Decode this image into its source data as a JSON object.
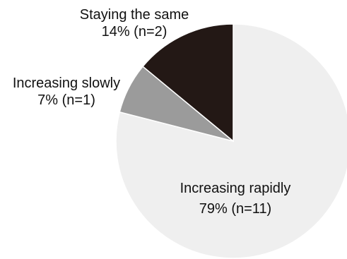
{
  "chart_data": {
    "type": "pie",
    "title": "",
    "start_angle_deg": 0,
    "direction": "clockwise",
    "legend": "none",
    "slices": [
      {
        "label": "Increasing rapidly",
        "value": 79,
        "display": "79% (n=11)",
        "color": "#efefef"
      },
      {
        "label": "Increasing slowly",
        "value": 7,
        "display": "7% (n=1)",
        "color": "#9b9b9b"
      },
      {
        "label": "Staying the same",
        "value": 14,
        "display": "14% (n=2)",
        "color": "#231815"
      }
    ]
  }
}
